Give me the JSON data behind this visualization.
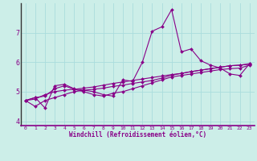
{
  "xlabel": "Windchill (Refroidissement éolien,°C)",
  "bg_color": "#cceee8",
  "grid_color": "#aadddd",
  "line_color": "#880088",
  "axis_color": "#220022",
  "xlim": [
    -0.5,
    23.5
  ],
  "ylim": [
    3.85,
    8.0
  ],
  "yticks": [
    4,
    5,
    6,
    7
  ],
  "xticks": [
    0,
    1,
    2,
    3,
    4,
    5,
    6,
    7,
    8,
    9,
    10,
    11,
    12,
    13,
    14,
    15,
    16,
    17,
    18,
    19,
    20,
    21,
    22,
    23
  ],
  "series": [
    [
      4.7,
      4.8,
      4.45,
      5.2,
      5.25,
      5.1,
      5.05,
      5.0,
      4.9,
      4.85,
      5.4,
      5.35,
      6.0,
      7.05,
      7.2,
      7.78,
      6.35,
      6.45,
      6.05,
      5.9,
      5.8,
      5.6,
      5.55,
      5.95
    ],
    [
      4.7,
      4.8,
      4.85,
      5.1,
      5.2,
      5.08,
      5.0,
      4.9,
      4.85,
      4.95,
      5.0,
      5.1,
      5.2,
      5.3,
      5.4,
      5.5,
      5.55,
      5.6,
      5.65,
      5.7,
      5.75,
      5.78,
      5.8,
      5.9
    ],
    [
      4.7,
      4.5,
      4.7,
      4.8,
      4.9,
      5.0,
      5.05,
      5.08,
      5.12,
      5.18,
      5.22,
      5.28,
      5.33,
      5.38,
      5.46,
      5.56,
      5.62,
      5.68,
      5.73,
      5.78,
      5.83,
      5.88,
      5.9,
      5.95
    ],
    [
      4.7,
      4.75,
      4.9,
      5.0,
      5.05,
      5.08,
      5.12,
      5.16,
      5.22,
      5.28,
      5.33,
      5.38,
      5.43,
      5.48,
      5.53,
      5.58,
      5.62,
      5.68,
      5.73,
      5.78,
      5.83,
      5.88,
      5.9,
      5.93
    ]
  ]
}
